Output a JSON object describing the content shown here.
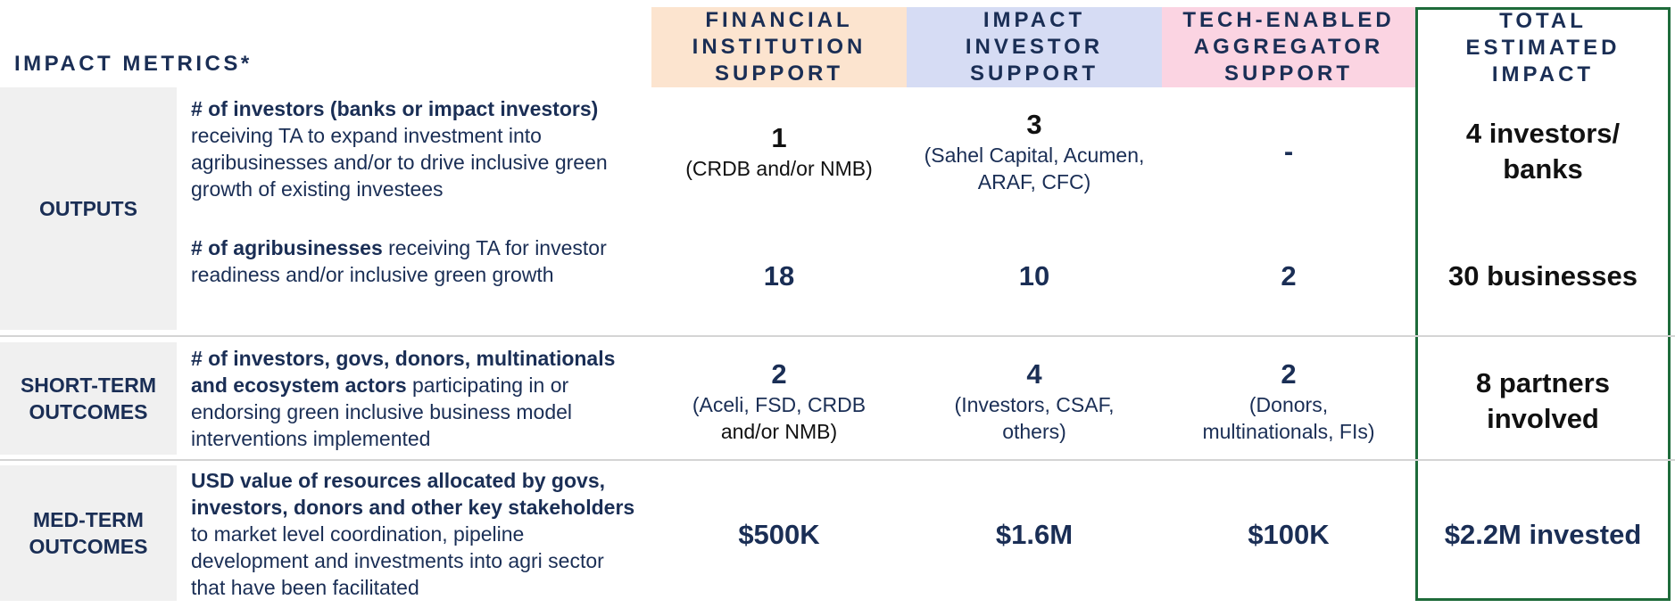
{
  "header": {
    "title": "IMPACT METRICS*",
    "columns": [
      {
        "lines": [
          "FINANCIAL",
          "INSTITUTION",
          "SUPPORT"
        ],
        "color": "#fce4cf"
      },
      {
        "lines": [
          "IMPACT",
          "INVESTOR",
          "SUPPORT"
        ],
        "color": "#d6dcf4"
      },
      {
        "lines": [
          "TECH-ENABLED",
          "AGGREGATOR",
          "SUPPORT"
        ],
        "color": "#fbd4e2"
      },
      {
        "lines": [
          "TOTAL",
          "ESTIMATED",
          "IMPACT"
        ],
        "color": "#ffffff"
      }
    ],
    "total_border_color": "#1e6b3a"
  },
  "sections": {
    "outputs": "OUTPUTS",
    "short_term": [
      "SHORT-TERM",
      "OUTCOMES"
    ],
    "med_term": [
      "MED-TERM",
      "OUTCOMES"
    ]
  },
  "rows": [
    {
      "bold": "# of investors (banks or impact investors)",
      "rest": " receiving TA to expand investment into agribusinesses and/or to drive inclusive green growth of existing investees",
      "fi": {
        "value": "1",
        "detail": "(CRDB and/or NMB)"
      },
      "ii": {
        "value": "3",
        "detail": "(Sahel Capital, Acumen, ARAF, CFC)"
      },
      "ta": {
        "value": "-",
        "detail": ""
      },
      "total": [
        "4 investors/",
        "banks"
      ]
    },
    {
      "bold": "# of agribusinesses",
      "rest": " receiving TA for investor readiness and/or inclusive green growth",
      "fi": {
        "value": "18",
        "detail": ""
      },
      "ii": {
        "value": "10",
        "detail": ""
      },
      "ta": {
        "value": "2",
        "detail": ""
      },
      "total": [
        "30 businesses"
      ]
    },
    {
      "bold": "# of investors, govs, donors, multinationals and ecosystem actors",
      "rest": " participating in or endorsing green inclusive business model interventions implemented",
      "fi": {
        "value": "2",
        "detail_a": "(Aceli, FSD, CRDB",
        "detail_b": "and/or NMB)"
      },
      "ii": {
        "value": "4",
        "detail": "(Investors, CSAF, others)"
      },
      "ta": {
        "value": "2",
        "detail": "(Donors, multinationals, FIs)"
      },
      "total": [
        "8 partners",
        "involved"
      ]
    },
    {
      "bold": "USD value of resources allocated by govs, investors, donors and other key stakeholders",
      "rest": " to market level coordination, pipeline development and investments into agri sector that have been facilitated",
      "fi": {
        "value": "$500K"
      },
      "ii": {
        "value": "$1.6M"
      },
      "ta": {
        "value": "$100K"
      },
      "total": [
        "$2.2M invested"
      ]
    }
  ]
}
